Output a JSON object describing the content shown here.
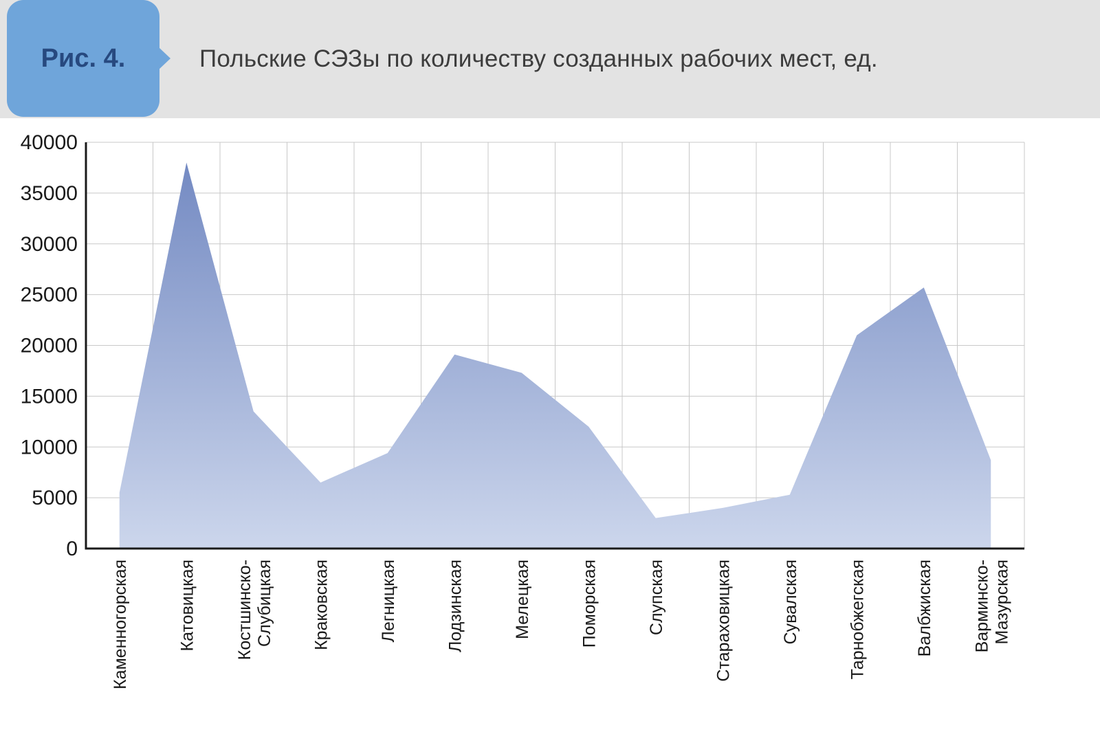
{
  "figure": {
    "label": "Рис. 4.",
    "title": "Польские СЭЗы по количеству созданных рабочих мест, ед."
  },
  "colors": {
    "header_band": "#e3e3e3",
    "label_box": "#6fa5da",
    "label_text": "#27497f",
    "title_text": "#3d3d3d",
    "area_top": "#6f86c0",
    "area_bottom": "#ccd6ec",
    "gridline": "#c8c8c8",
    "axis": "#1a1a1a"
  },
  "chart_data": {
    "type": "area",
    "title": "Польские СЭЗы по количеству созданных рабочих мест, ед.",
    "categories": [
      "Каменногорская",
      "Катовицкая",
      "Костшинско-\nСлубицкая",
      "Краковская",
      "Легницкая",
      "Лодзинская",
      "Мелецкая",
      "Поморская",
      "Слупская",
      "Стараховицкая",
      "Сувалская",
      "Тарнобжегская",
      "Валбжиская",
      "Варминско-\nМазурская"
    ],
    "values": [
      5500,
      38000,
      13500,
      6500,
      9400,
      19100,
      17300,
      12000,
      3000,
      4000,
      5300,
      21000,
      25700,
      8700
    ],
    "xlabel": "",
    "ylabel": "",
    "ylim": [
      0,
      40000
    ],
    "ytick_step": 5000,
    "grid": true,
    "legend": "none",
    "x_label_rotation": -90
  }
}
